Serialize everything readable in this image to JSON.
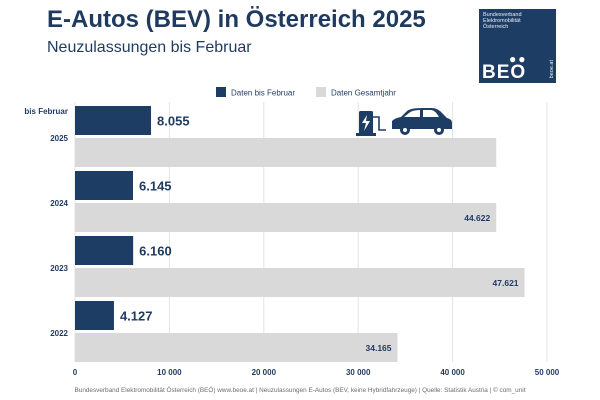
{
  "title": "E-Autos (BEV) in Österreich 2025",
  "subtitle": "Neuzulassungen bis Februar",
  "logo": {
    "org": "Bundesverband Elektromobilität Österreich",
    "abbr": "BEO",
    "web": "beoe.at"
  },
  "footer": "Bundesverband Elektromobilität Österreich (BEÖ) www.beoe.at | Neuzulassungen E-Autos (BEV, keine Hybridfahrzeuge) | Quelle: Statistik Austria | © com_unit",
  "colors": {
    "february": "#1e3d64",
    "full_year": "#d9d9d9",
    "grid": "#e4e4e4",
    "text": "#1f3a5f"
  },
  "chart_data": {
    "type": "bar",
    "orientation": "horizontal",
    "categories": [
      "2025",
      "2024",
      "2023",
      "2022"
    ],
    "category_note": "bis Februar",
    "series": [
      {
        "name": "Daten bis Februar",
        "values": [
          8055,
          6145,
          6160,
          4127
        ],
        "labels": [
          "8.055",
          "6.145",
          "6.160",
          "4.127"
        ]
      },
      {
        "name": "Daten Gesamtjahr",
        "values": [
          44622,
          44622,
          47621,
          34165
        ],
        "labels": [
          "",
          "44.622",
          "47.621",
          "34.165"
        ]
      }
    ],
    "xlim": [
      0,
      50000
    ],
    "xticks": [
      0,
      10000,
      20000,
      30000,
      40000,
      50000
    ],
    "xtick_labels": [
      "0",
      "10 000",
      "20 000",
      "30 000",
      "40 000",
      "50 000"
    ],
    "grid": true,
    "legend": "top-right",
    "icon": "ev-charging-car-icon"
  }
}
